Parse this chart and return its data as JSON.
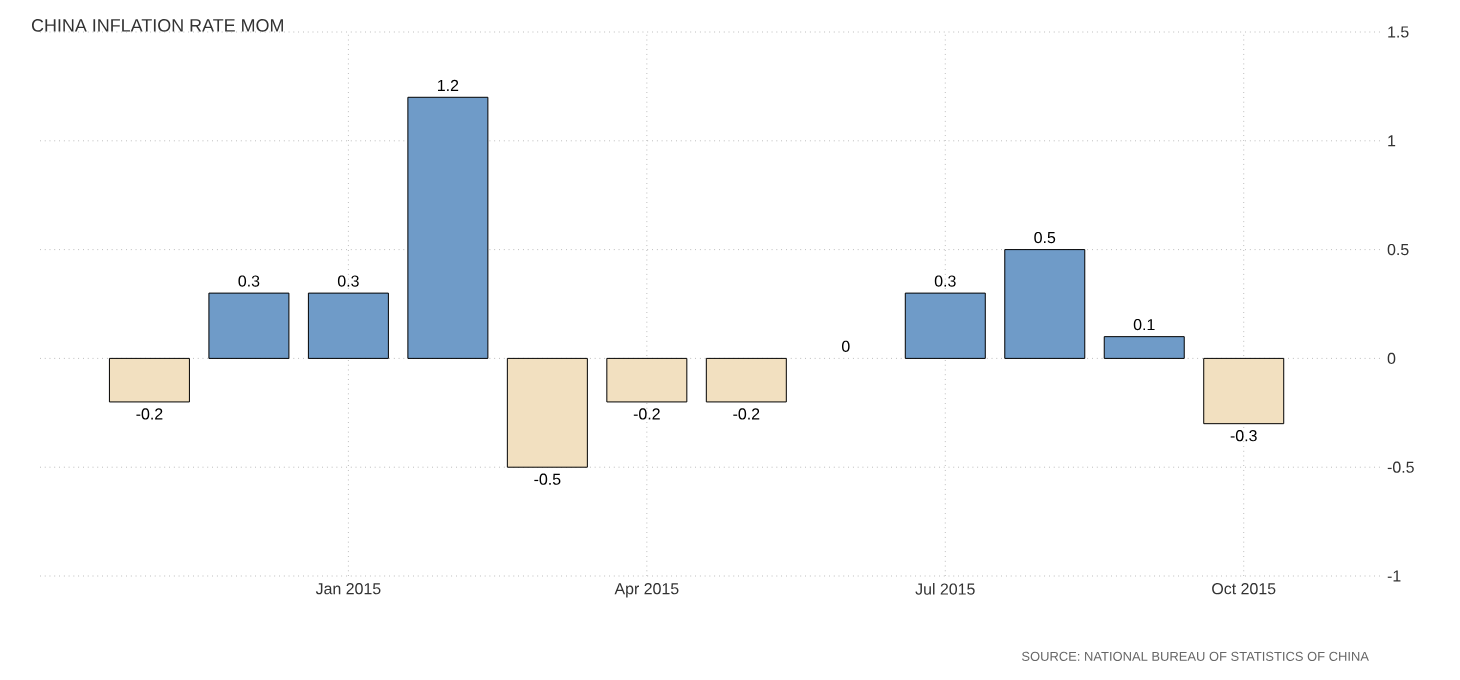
{
  "chart_data": {
    "type": "bar",
    "title": "CHINA INFLATION RATE MOM",
    "categories": [
      null,
      null,
      "Jan 2015",
      null,
      null,
      "Apr 2015",
      null,
      null,
      "Jul 2015",
      null,
      null,
      "Oct 2015"
    ],
    "values": [
      -0.2,
      0.3,
      0.3,
      1.2,
      -0.5,
      -0.2,
      -0.2,
      0,
      0.3,
      0.5,
      0.1,
      -0.3
    ],
    "colors": [
      "#f2e0c0",
      "#6f9bc8",
      "#6f9bc8",
      "#6f9bc8",
      "#f2e0c0",
      "#f2e0c0",
      "#f2e0c0",
      "#6f9bc8",
      "#6f9bc8",
      "#6f9bc8",
      "#6f9bc8",
      "#f2e0c0"
    ],
    "value_labels": [
      "-0.2",
      "0.3",
      "0.3",
      "1.2",
      "-0.5",
      "-0.2",
      "-0.2",
      "0",
      "0.3",
      "0.5",
      "0.1",
      "-0.3"
    ],
    "ylim": [
      -1,
      1.5
    ],
    "yticks": [
      -1,
      -0.5,
      0,
      0.5,
      1,
      1.5
    ],
    "grid": true,
    "annotations": [
      "SOURCE: NATIONAL BUREAU OF STATISTICS OF CHINA"
    ]
  }
}
